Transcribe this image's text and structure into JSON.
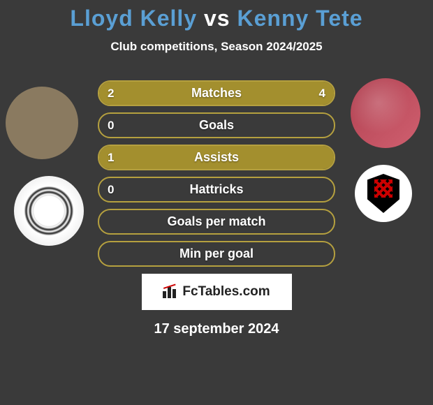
{
  "title": {
    "player1": "Lloyd Kelly",
    "vs": "vs",
    "player2": "Kenny Tete"
  },
  "subtitle": "Club competitions, Season 2024/2025",
  "colors": {
    "accent": "#a38f2e",
    "accent_border": "#b5a03f",
    "title_player": "#5a9fd4",
    "text": "#ffffff",
    "background": "#3a3a3a"
  },
  "stats": [
    {
      "label": "Matches",
      "left_value": "2",
      "right_value": "4",
      "left_pct": 33,
      "right_pct": 67,
      "show_values": true
    },
    {
      "label": "Goals",
      "left_value": "0",
      "right_value": "",
      "left_pct": 0,
      "right_pct": 0,
      "show_values": true
    },
    {
      "label": "Assists",
      "left_value": "1",
      "right_value": "",
      "left_pct": 100,
      "right_pct": 0,
      "show_values": true
    },
    {
      "label": "Hattricks",
      "left_value": "0",
      "right_value": "",
      "left_pct": 0,
      "right_pct": 0,
      "show_values": true
    },
    {
      "label": "Goals per match",
      "left_value": "",
      "right_value": "",
      "left_pct": 0,
      "right_pct": 0,
      "show_values": false
    },
    {
      "label": "Min per goal",
      "left_value": "",
      "right_value": "",
      "left_pct": 0,
      "right_pct": 0,
      "show_values": false
    }
  ],
  "logo_text": "FcTables.com",
  "date": "17 september 2024"
}
